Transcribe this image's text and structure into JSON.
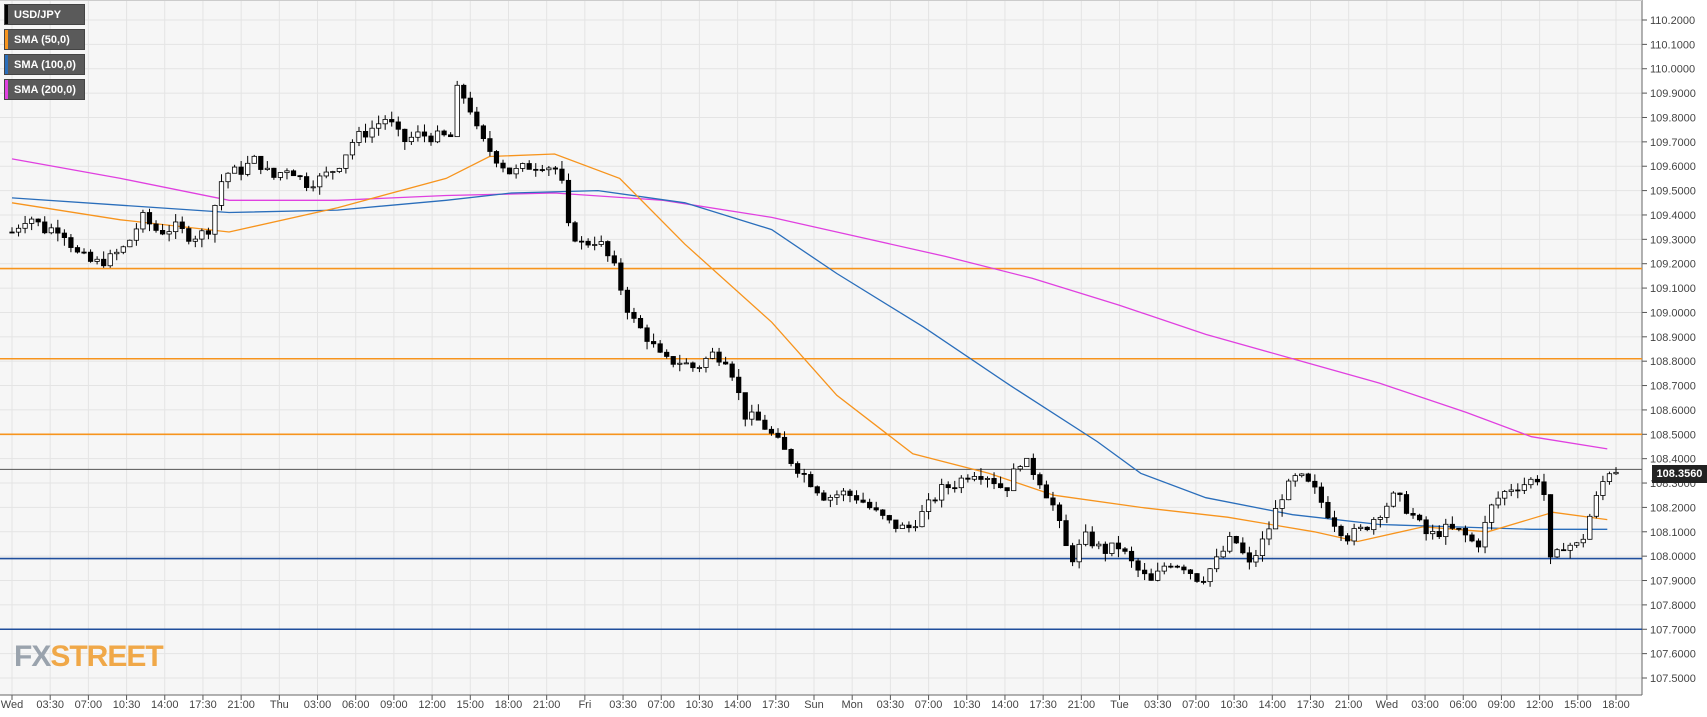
{
  "legend": [
    {
      "label": "USD/JPY",
      "color": "#000000"
    },
    {
      "label": "SMA (50,0)",
      "color": "#f7941d"
    },
    {
      "label": "SMA (100,0)",
      "color": "#2a6ebb"
    },
    {
      "label": "SMA (200,0)",
      "color": "#e040e0"
    }
  ],
  "logo": {
    "fx": "FX",
    "street": "STREET"
  },
  "current_price": "108.3560",
  "chart_data": {
    "type": "candlestick",
    "ylim": [
      107.45,
      110.25
    ],
    "y_ticks": [
      "110.2000",
      "110.1000",
      "110.0000",
      "109.9000",
      "109.8000",
      "109.7000",
      "109.6000",
      "109.5000",
      "109.4000",
      "109.3000",
      "109.2000",
      "109.1000",
      "109.0000",
      "108.9000",
      "108.8000",
      "108.7000",
      "108.6000",
      "108.5000",
      "108.4000",
      "108.3000",
      "108.2000",
      "108.1000",
      "108.0000",
      "107.9000",
      "107.8000",
      "107.7000",
      "107.6000",
      "107.5000"
    ],
    "x_ticks": [
      "Wed",
      "03:30",
      "07:00",
      "10:30",
      "14:00",
      "17:30",
      "21:00",
      "Thu",
      "03:00",
      "06:00",
      "09:00",
      "12:00",
      "15:00",
      "18:00",
      "21:00",
      "Fri",
      "03:30",
      "07:00",
      "10:30",
      "14:00",
      "17:30",
      "Sun",
      "Mon",
      "03:30",
      "07:00",
      "10:30",
      "14:00",
      "17:30",
      "21:00",
      "Tue",
      "03:30",
      "07:00",
      "10:30",
      "14:00",
      "17:30",
      "21:00",
      "Wed",
      "03:00",
      "06:00",
      "09:00",
      "12:00",
      "15:00",
      "18:00"
    ],
    "horizontal_levels": [
      {
        "value": 109.18,
        "color": "#f7941d"
      },
      {
        "value": 108.81,
        "color": "#f7941d"
      },
      {
        "value": 108.5,
        "color": "#f7941d"
      },
      {
        "value": 107.99,
        "color": "#1f4e9c"
      },
      {
        "value": 107.7,
        "color": "#1f4e9c"
      }
    ],
    "current_line": {
      "value": 108.356,
      "color": "#555555"
    },
    "close_path": [
      [
        0,
        109.33
      ],
      [
        15,
        109.4
      ],
      [
        30,
        109.34
      ],
      [
        45,
        109.35
      ],
      [
        60,
        109.24
      ],
      [
        75,
        109.2
      ],
      [
        90,
        109.22
      ],
      [
        105,
        109.27
      ],
      [
        120,
        109.39
      ],
      [
        135,
        109.33
      ],
      [
        150,
        109.35
      ],
      [
        165,
        109.31
      ],
      [
        180,
        109.33
      ],
      [
        195,
        109.57
      ],
      [
        210,
        109.58
      ],
      [
        225,
        109.63
      ],
      [
        240,
        109.55
      ],
      [
        255,
        109.6
      ],
      [
        270,
        109.53
      ],
      [
        285,
        109.55
      ],
      [
        300,
        109.6
      ],
      [
        315,
        109.71
      ],
      [
        330,
        109.75
      ],
      [
        345,
        109.8
      ],
      [
        360,
        109.7
      ],
      [
        375,
        109.73
      ],
      [
        390,
        109.72
      ],
      [
        405,
        109.72
      ],
      [
        410,
        109.91
      ],
      [
        420,
        109.87
      ],
      [
        430,
        109.72
      ],
      [
        445,
        109.64
      ],
      [
        460,
        109.57
      ],
      [
        475,
        109.6
      ],
      [
        490,
        109.61
      ],
      [
        505,
        109.58
      ],
      [
        512,
        109.35
      ],
      [
        525,
        109.28
      ],
      [
        540,
        109.3
      ],
      [
        555,
        109.18
      ],
      [
        570,
        108.98
      ],
      [
        585,
        108.9
      ],
      [
        600,
        108.8
      ],
      [
        615,
        108.8
      ],
      [
        630,
        108.77
      ],
      [
        645,
        108.83
      ],
      [
        660,
        108.81
      ],
      [
        675,
        108.58
      ],
      [
        690,
        108.55
      ],
      [
        705,
        108.47
      ],
      [
        720,
        108.38
      ],
      [
        735,
        108.31
      ],
      [
        750,
        108.24
      ],
      [
        765,
        108.26
      ],
      [
        780,
        108.24
      ],
      [
        795,
        108.18
      ],
      [
        810,
        108.13
      ],
      [
        825,
        108.11
      ],
      [
        840,
        108.18
      ],
      [
        855,
        108.27
      ],
      [
        870,
        108.3
      ],
      [
        885,
        108.35
      ],
      [
        900,
        108.33
      ],
      [
        915,
        108.27
      ],
      [
        930,
        108.4
      ],
      [
        945,
        108.33
      ],
      [
        960,
        108.2
      ],
      [
        975,
        107.98
      ],
      [
        990,
        108.08
      ],
      [
        1005,
        108.02
      ],
      [
        1020,
        108.04
      ],
      [
        1035,
        107.95
      ],
      [
        1050,
        107.89
      ],
      [
        1065,
        107.98
      ],
      [
        1080,
        107.96
      ],
      [
        1095,
        107.9
      ],
      [
        1110,
        107.98
      ],
      [
        1125,
        108.08
      ],
      [
        1140,
        107.96
      ],
      [
        1155,
        108.08
      ],
      [
        1170,
        108.25
      ],
      [
        1185,
        108.33
      ],
      [
        1200,
        108.27
      ],
      [
        1215,
        108.16
      ],
      [
        1230,
        108.08
      ],
      [
        1245,
        108.11
      ],
      [
        1260,
        108.18
      ],
      [
        1275,
        108.25
      ],
      [
        1290,
        108.17
      ],
      [
        1305,
        108.08
      ],
      [
        1320,
        108.11
      ],
      [
        1335,
        108.1
      ],
      [
        1350,
        108.04
      ],
      [
        1365,
        108.22
      ],
      [
        1380,
        108.28
      ],
      [
        1395,
        108.3
      ],
      [
        1410,
        108.33
      ],
      [
        1418,
        107.96
      ],
      [
        1430,
        108.05
      ],
      [
        1445,
        108.04
      ],
      [
        1455,
        108.18
      ],
      [
        1470,
        108.35
      ],
      [
        1478,
        108.356
      ]
    ],
    "sma_50": [
      [
        0,
        109.45
      ],
      [
        100,
        109.38
      ],
      [
        200,
        109.33
      ],
      [
        300,
        109.43
      ],
      [
        400,
        109.55
      ],
      [
        440,
        109.64
      ],
      [
        500,
        109.65
      ],
      [
        560,
        109.55
      ],
      [
        620,
        109.28
      ],
      [
        700,
        108.96
      ],
      [
        760,
        108.66
      ],
      [
        830,
        108.42
      ],
      [
        900,
        108.34
      ],
      [
        960,
        108.25
      ],
      [
        1040,
        108.2
      ],
      [
        1120,
        108.16
      ],
      [
        1200,
        108.1
      ],
      [
        1240,
        108.06
      ],
      [
        1300,
        108.12
      ],
      [
        1360,
        108.1
      ],
      [
        1420,
        108.18
      ],
      [
        1470,
        108.15
      ]
    ],
    "sma_100": [
      [
        0,
        109.47
      ],
      [
        100,
        109.44
      ],
      [
        200,
        109.41
      ],
      [
        300,
        109.42
      ],
      [
        400,
        109.46
      ],
      [
        460,
        109.49
      ],
      [
        540,
        109.5
      ],
      [
        620,
        109.45
      ],
      [
        700,
        109.34
      ],
      [
        760,
        109.16
      ],
      [
        840,
        108.94
      ],
      [
        920,
        108.7
      ],
      [
        1000,
        108.47
      ],
      [
        1040,
        108.34
      ],
      [
        1100,
        108.24
      ],
      [
        1180,
        108.17
      ],
      [
        1260,
        108.13
      ],
      [
        1330,
        108.12
      ],
      [
        1400,
        108.11
      ],
      [
        1470,
        108.11
      ]
    ],
    "sma_200": [
      [
        0,
        109.63
      ],
      [
        100,
        109.55
      ],
      [
        200,
        109.46
      ],
      [
        300,
        109.46
      ],
      [
        400,
        109.48
      ],
      [
        500,
        109.49
      ],
      [
        600,
        109.46
      ],
      [
        700,
        109.39
      ],
      [
        780,
        109.31
      ],
      [
        860,
        109.23
      ],
      [
        940,
        109.14
      ],
      [
        1020,
        109.03
      ],
      [
        1100,
        108.91
      ],
      [
        1180,
        108.81
      ],
      [
        1260,
        108.71
      ],
      [
        1340,
        108.59
      ],
      [
        1400,
        108.49
      ],
      [
        1470,
        108.44
      ]
    ]
  }
}
